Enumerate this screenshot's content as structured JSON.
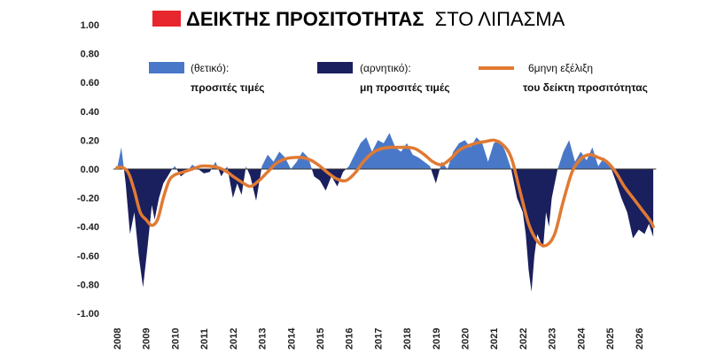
{
  "chart_data": {
    "type": "area",
    "title_bold": "ΔΕΙΚΤΗΣ ΠΡΟΣΙΤΟΤΗΤΑΣ",
    "title_rest": "ΣΤΟ ΛΙΠΑΣΜΑ",
    "title_marker_color": "#e8262d",
    "ylim": [
      -1.0,
      1.0
    ],
    "yticks": [
      1.0,
      0.8,
      0.6,
      0.4,
      0.2,
      0.0,
      -0.2,
      -0.4,
      -0.6,
      -0.8,
      -1.0
    ],
    "ytick_labels": [
      "1.00",
      "0.80",
      "0.60",
      "0.40",
      "0.20",
      "0.00",
      "-0.20",
      "-0.40",
      "-0.60",
      "-0.80",
      "-1.00"
    ],
    "x_years": [
      "2008",
      "2009",
      "2010",
      "2011",
      "2012",
      "2013",
      "2014",
      "2015",
      "2016",
      "2017",
      "2018",
      "2019",
      "2020",
      "2021",
      "2022",
      "2023",
      "2024",
      "2025",
      "2026"
    ],
    "xlim": [
      2008,
      2027.2
    ],
    "legend": [
      {
        "line1": "(θετικό):",
        "line2": "προσιτές τιμές",
        "kind": "area-positive"
      },
      {
        "line1": "(αρνητικό):",
        "line2": "μη προσιτές τιμές",
        "kind": "area-negative"
      },
      {
        "line1": "6μηνη εξέλιξη",
        "line2": "του δείκτη προσιτότητας",
        "kind": "line"
      }
    ],
    "colors": {
      "positive": "#4a78c8",
      "negative": "#1a1f5e",
      "line": "#e07a33"
    },
    "series": [
      {
        "name": "(θετικό): προσιτές τιμές / (αρνητικό): μη προσιτές τιμές",
        "x": [
          2008.0,
          2008.15,
          2008.3,
          2008.45,
          2008.6,
          2008.75,
          2008.9,
          2009.05,
          2009.2,
          2009.3,
          2009.45,
          2009.6,
          2009.75,
          2009.9,
          2010.0,
          2010.2,
          2010.4,
          2010.6,
          2010.8,
          2011.0,
          2011.2,
          2011.4,
          2011.6,
          2011.8,
          2012.0,
          2012.15,
          2012.3,
          2012.45,
          2012.6,
          2012.8,
          2013.0,
          2013.2,
          2013.4,
          2013.6,
          2013.8,
          2014.0,
          2014.2,
          2014.4,
          2014.6,
          2014.8,
          2015.0,
          2015.2,
          2015.4,
          2015.6,
          2015.8,
          2016.0,
          2016.2,
          2016.4,
          2016.6,
          2016.8,
          2017.0,
          2017.2,
          2017.4,
          2017.6,
          2017.8,
          2018.0,
          2018.2,
          2018.4,
          2018.6,
          2018.8,
          2019.0,
          2019.2,
          2019.4,
          2019.6,
          2019.8,
          2020.0,
          2020.2,
          2020.4,
          2020.6,
          2020.8,
          2021.0,
          2021.2,
          2021.4,
          2021.6,
          2021.8,
          2022.0,
          2022.1,
          2022.2,
          2022.3,
          2022.4,
          2022.5,
          2022.6,
          2022.7,
          2022.8,
          2022.9,
          2023.0,
          2023.2,
          2023.4,
          2023.6,
          2023.8,
          2024.0,
          2024.2,
          2024.4,
          2024.6,
          2024.8,
          2025.0,
          2025.2,
          2025.4,
          2025.6,
          2025.8,
          2026.0,
          2026.2,
          2026.35,
          2026.5
        ],
        "values": [
          0.0,
          0.15,
          -0.1,
          -0.45,
          -0.3,
          -0.6,
          -0.82,
          -0.55,
          -0.25,
          -0.35,
          -0.2,
          -0.1,
          -0.05,
          0.0,
          0.02,
          -0.05,
          -0.02,
          0.03,
          0.0,
          -0.03,
          -0.02,
          0.05,
          -0.05,
          0.02,
          -0.2,
          -0.1,
          -0.18,
          0.02,
          -0.05,
          -0.22,
          0.02,
          0.1,
          0.05,
          0.12,
          0.08,
          0.0,
          0.05,
          0.12,
          0.08,
          -0.05,
          -0.08,
          -0.15,
          -0.05,
          -0.12,
          -0.02,
          0.02,
          0.1,
          0.18,
          0.22,
          0.12,
          0.2,
          0.18,
          0.25,
          0.15,
          0.12,
          0.18,
          0.1,
          0.08,
          0.05,
          0.02,
          -0.1,
          0.05,
          0.0,
          0.12,
          0.18,
          0.2,
          0.15,
          0.22,
          0.18,
          0.05,
          0.18,
          0.2,
          0.12,
          0.0,
          -0.2,
          -0.3,
          -0.45,
          -0.7,
          -0.85,
          -0.6,
          -0.45,
          -0.5,
          -0.55,
          -0.3,
          -0.4,
          -0.2,
          0.0,
          0.12,
          0.2,
          0.05,
          0.12,
          0.06,
          0.15,
          0.02,
          0.08,
          0.03,
          -0.08,
          -0.2,
          -0.3,
          -0.48,
          -0.42,
          -0.45,
          -0.38,
          -0.47
        ]
      },
      {
        "name": "6μηνη εξέλιξη του δείκτη προσιτότητας",
        "x": [
          2008.0,
          2008.2,
          2008.4,
          2008.6,
          2008.8,
          2009.0,
          2009.2,
          2009.4,
          2009.6,
          2009.8,
          2010.0,
          2010.3,
          2010.6,
          2010.9,
          2011.2,
          2011.5,
          2011.8,
          2012.0,
          2012.3,
          2012.6,
          2012.9,
          2013.2,
          2013.5,
          2013.8,
          2014.1,
          2014.4,
          2014.7,
          2015.0,
          2015.3,
          2015.6,
          2015.9,
          2016.2,
          2016.5,
          2016.8,
          2017.1,
          2017.4,
          2017.7,
          2018.0,
          2018.3,
          2018.6,
          2018.9,
          2019.2,
          2019.5,
          2019.8,
          2020.1,
          2020.4,
          2020.7,
          2021.0,
          2021.3,
          2021.6,
          2021.9,
          2022.2,
          2022.5,
          2022.8,
          2023.1,
          2023.4,
          2023.7,
          2024.0,
          2024.3,
          2024.6,
          2024.9,
          2025.2,
          2025.5,
          2025.8,
          2026.1,
          2026.4,
          2026.5
        ],
        "values": [
          0.01,
          0.01,
          -0.03,
          -0.15,
          -0.3,
          -0.35,
          -0.39,
          -0.35,
          -0.2,
          -0.08,
          -0.04,
          -0.02,
          0.0,
          0.02,
          0.02,
          0.01,
          -0.02,
          -0.05,
          -0.09,
          -0.12,
          -0.08,
          -0.02,
          0.04,
          0.07,
          0.08,
          0.08,
          0.06,
          0.02,
          -0.03,
          -0.07,
          -0.08,
          -0.03,
          0.05,
          0.11,
          0.14,
          0.15,
          0.15,
          0.15,
          0.14,
          0.1,
          0.05,
          0.03,
          0.07,
          0.13,
          0.16,
          0.18,
          0.19,
          0.2,
          0.17,
          0.08,
          -0.15,
          -0.38,
          -0.5,
          -0.53,
          -0.45,
          -0.22,
          -0.02,
          0.07,
          0.1,
          0.08,
          0.05,
          -0.02,
          -0.12,
          -0.2,
          -0.28,
          -0.36,
          -0.4
        ]
      }
    ]
  }
}
